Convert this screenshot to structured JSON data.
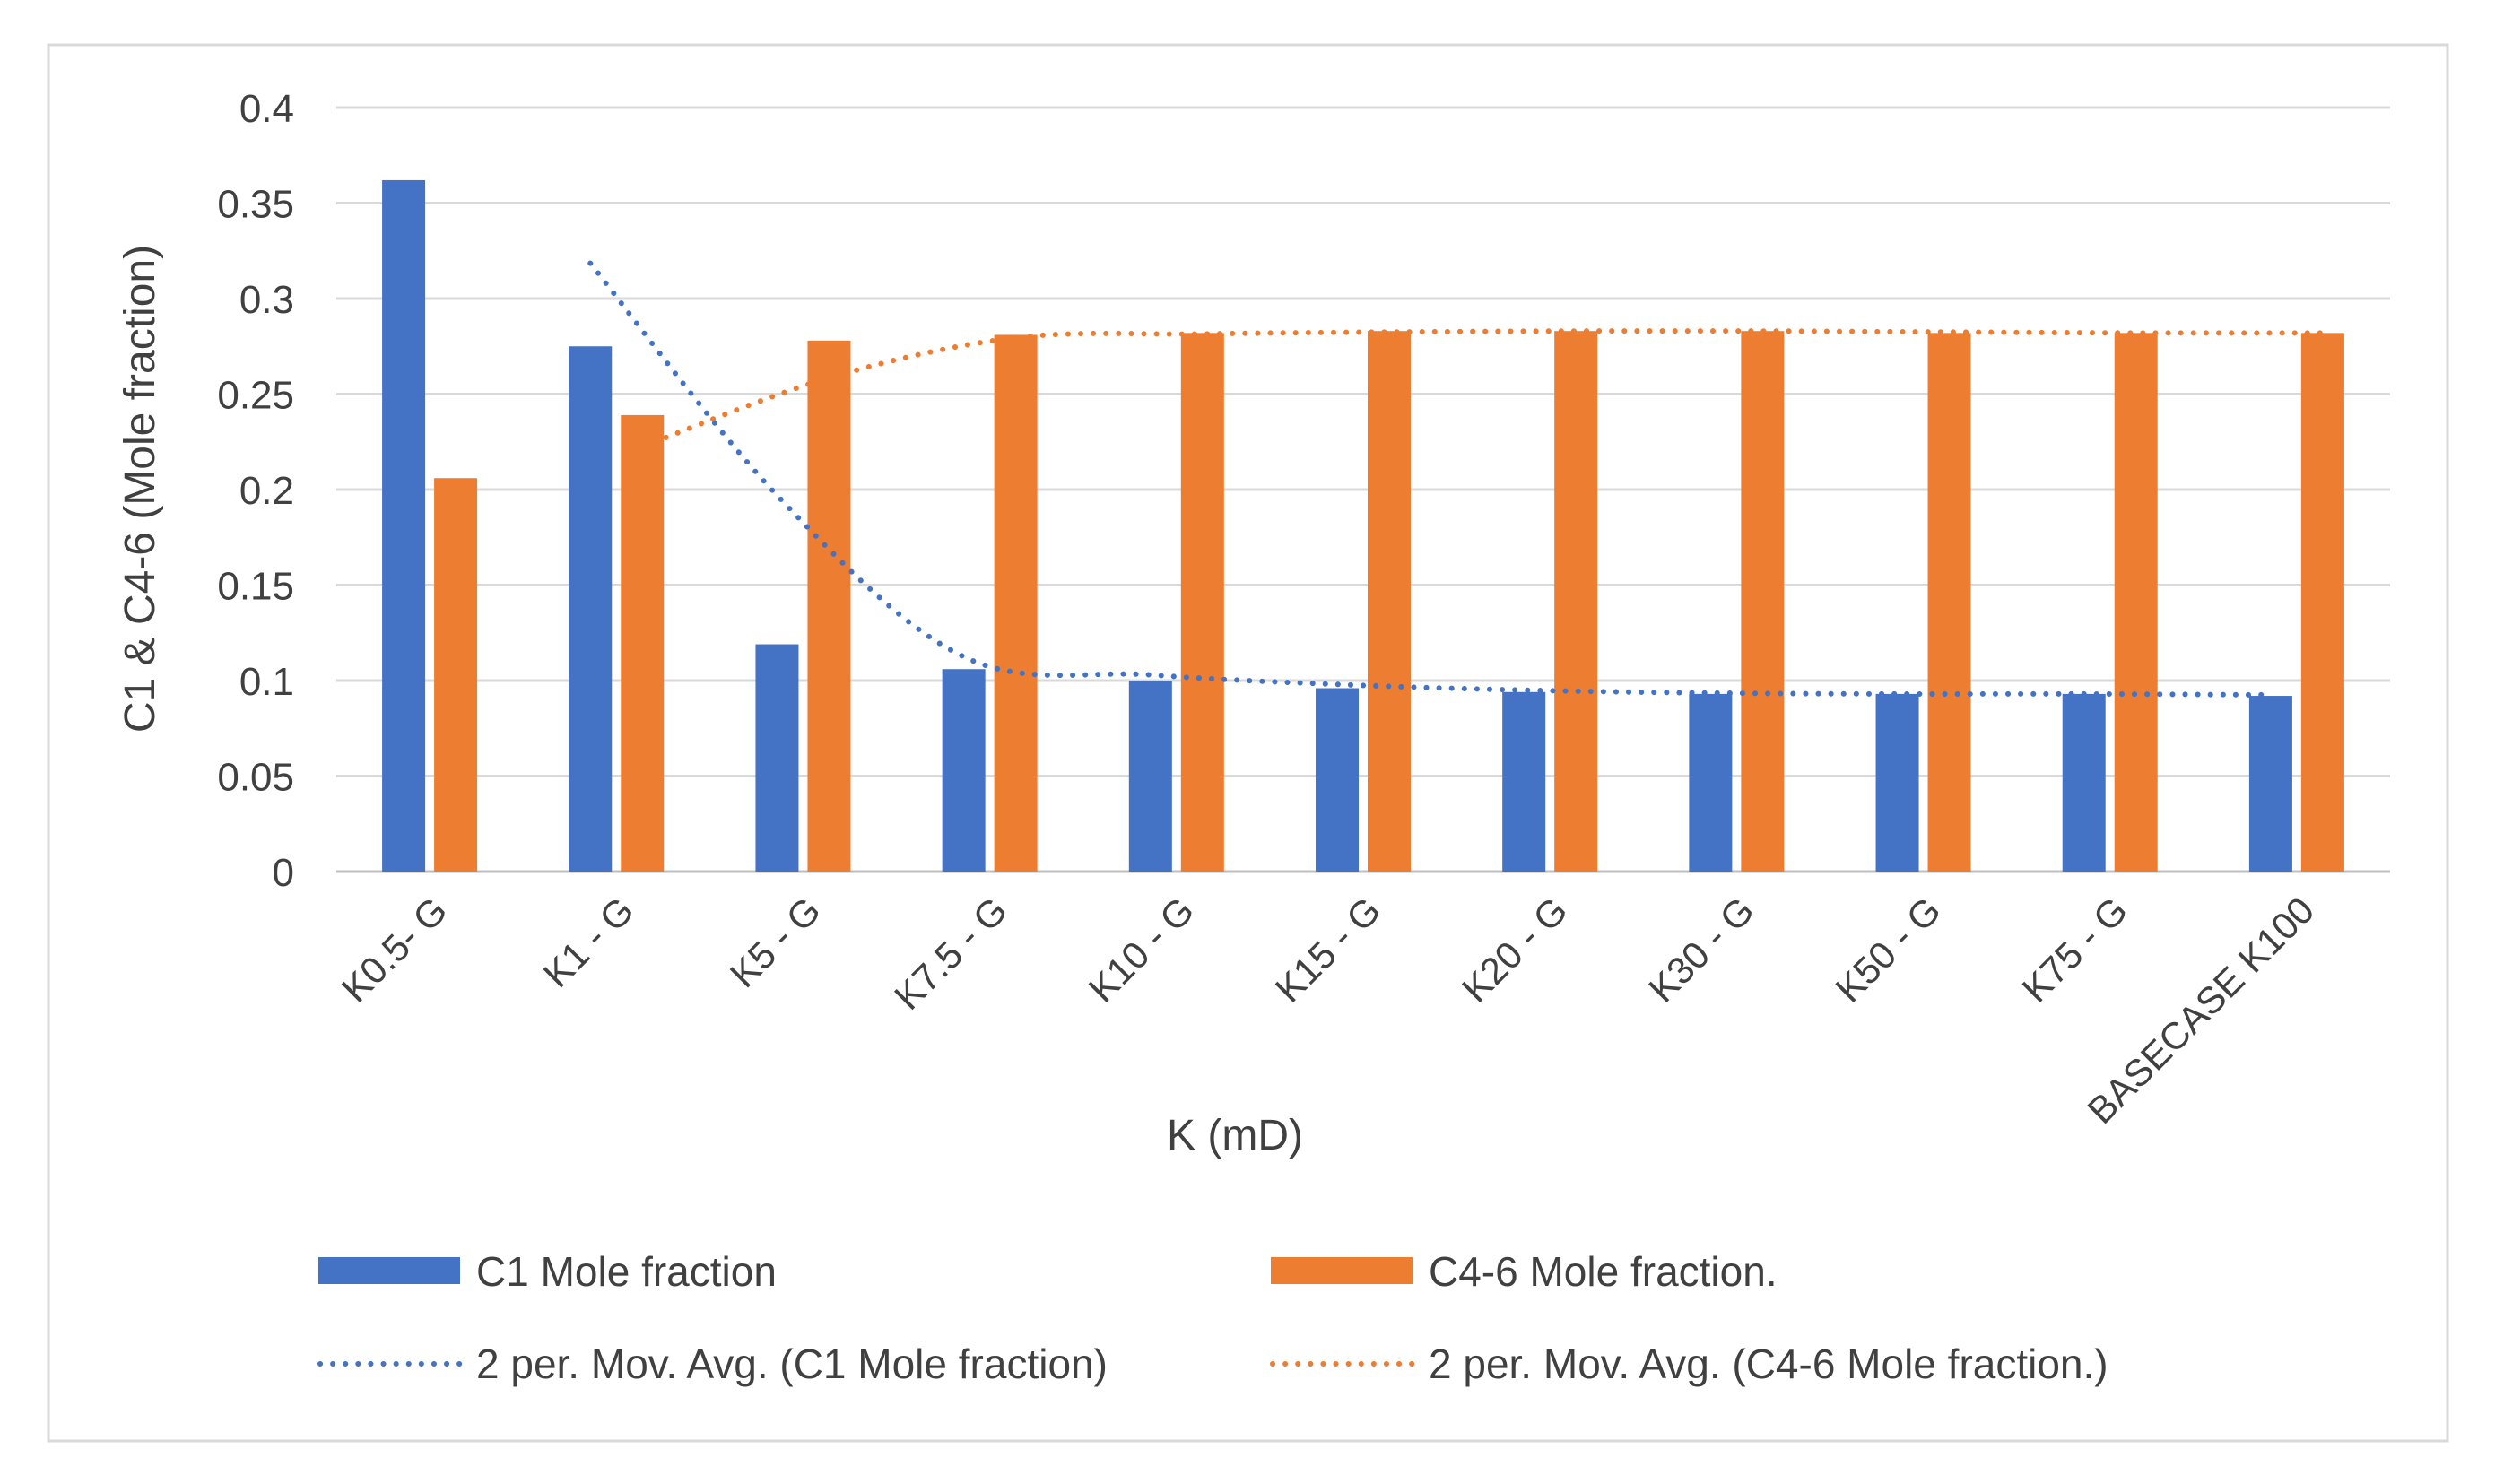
{
  "chart_data": {
    "type": "bar",
    "title": "",
    "xlabel": "K (mD)",
    "ylabel": "C1 & C4-6 (Mole fraction)",
    "ylim": [
      0,
      0.4
    ],
    "yticks": [
      "0",
      "0.05",
      "0.1",
      "0.15",
      "0.2",
      "0.25",
      "0.3",
      "0.35",
      "0.4"
    ],
    "grid": true,
    "legend_position": "bottom",
    "categories": [
      "K0.5- G",
      "K1 - G",
      "K5 - G",
      "K7.5 - G",
      "K10 - G",
      "K15 - G",
      "K20 - G",
      "K30 - G",
      "K50 - G",
      "K75 - G",
      "BASECASE K100"
    ],
    "series": [
      {
        "name": "C1 Mole fraction",
        "color": "#4472C4",
        "values": [
          0.362,
          0.275,
          0.119,
          0.106,
          0.1,
          0.096,
          0.094,
          0.093,
          0.093,
          0.093,
          0.092
        ]
      },
      {
        "name": "C4-6 Mole fraction.",
        "color": "#ED7D31",
        "values": [
          0.206,
          0.239,
          0.278,
          0.281,
          0.282,
          0.283,
          0.283,
          0.283,
          0.282,
          0.282,
          0.282
        ]
      }
    ],
    "trendlines": [
      {
        "name": "2 per. Mov. Avg. (C1 Mole fraction)",
        "color": "#4472C4",
        "style": "dotted",
        "period": 2,
        "source_series": 0
      },
      {
        "name": "2 per. Mov. Avg. (C4-6 Mole fraction.)",
        "color": "#ED7D31",
        "style": "dotted",
        "period": 2,
        "source_series": 1
      }
    ]
  }
}
